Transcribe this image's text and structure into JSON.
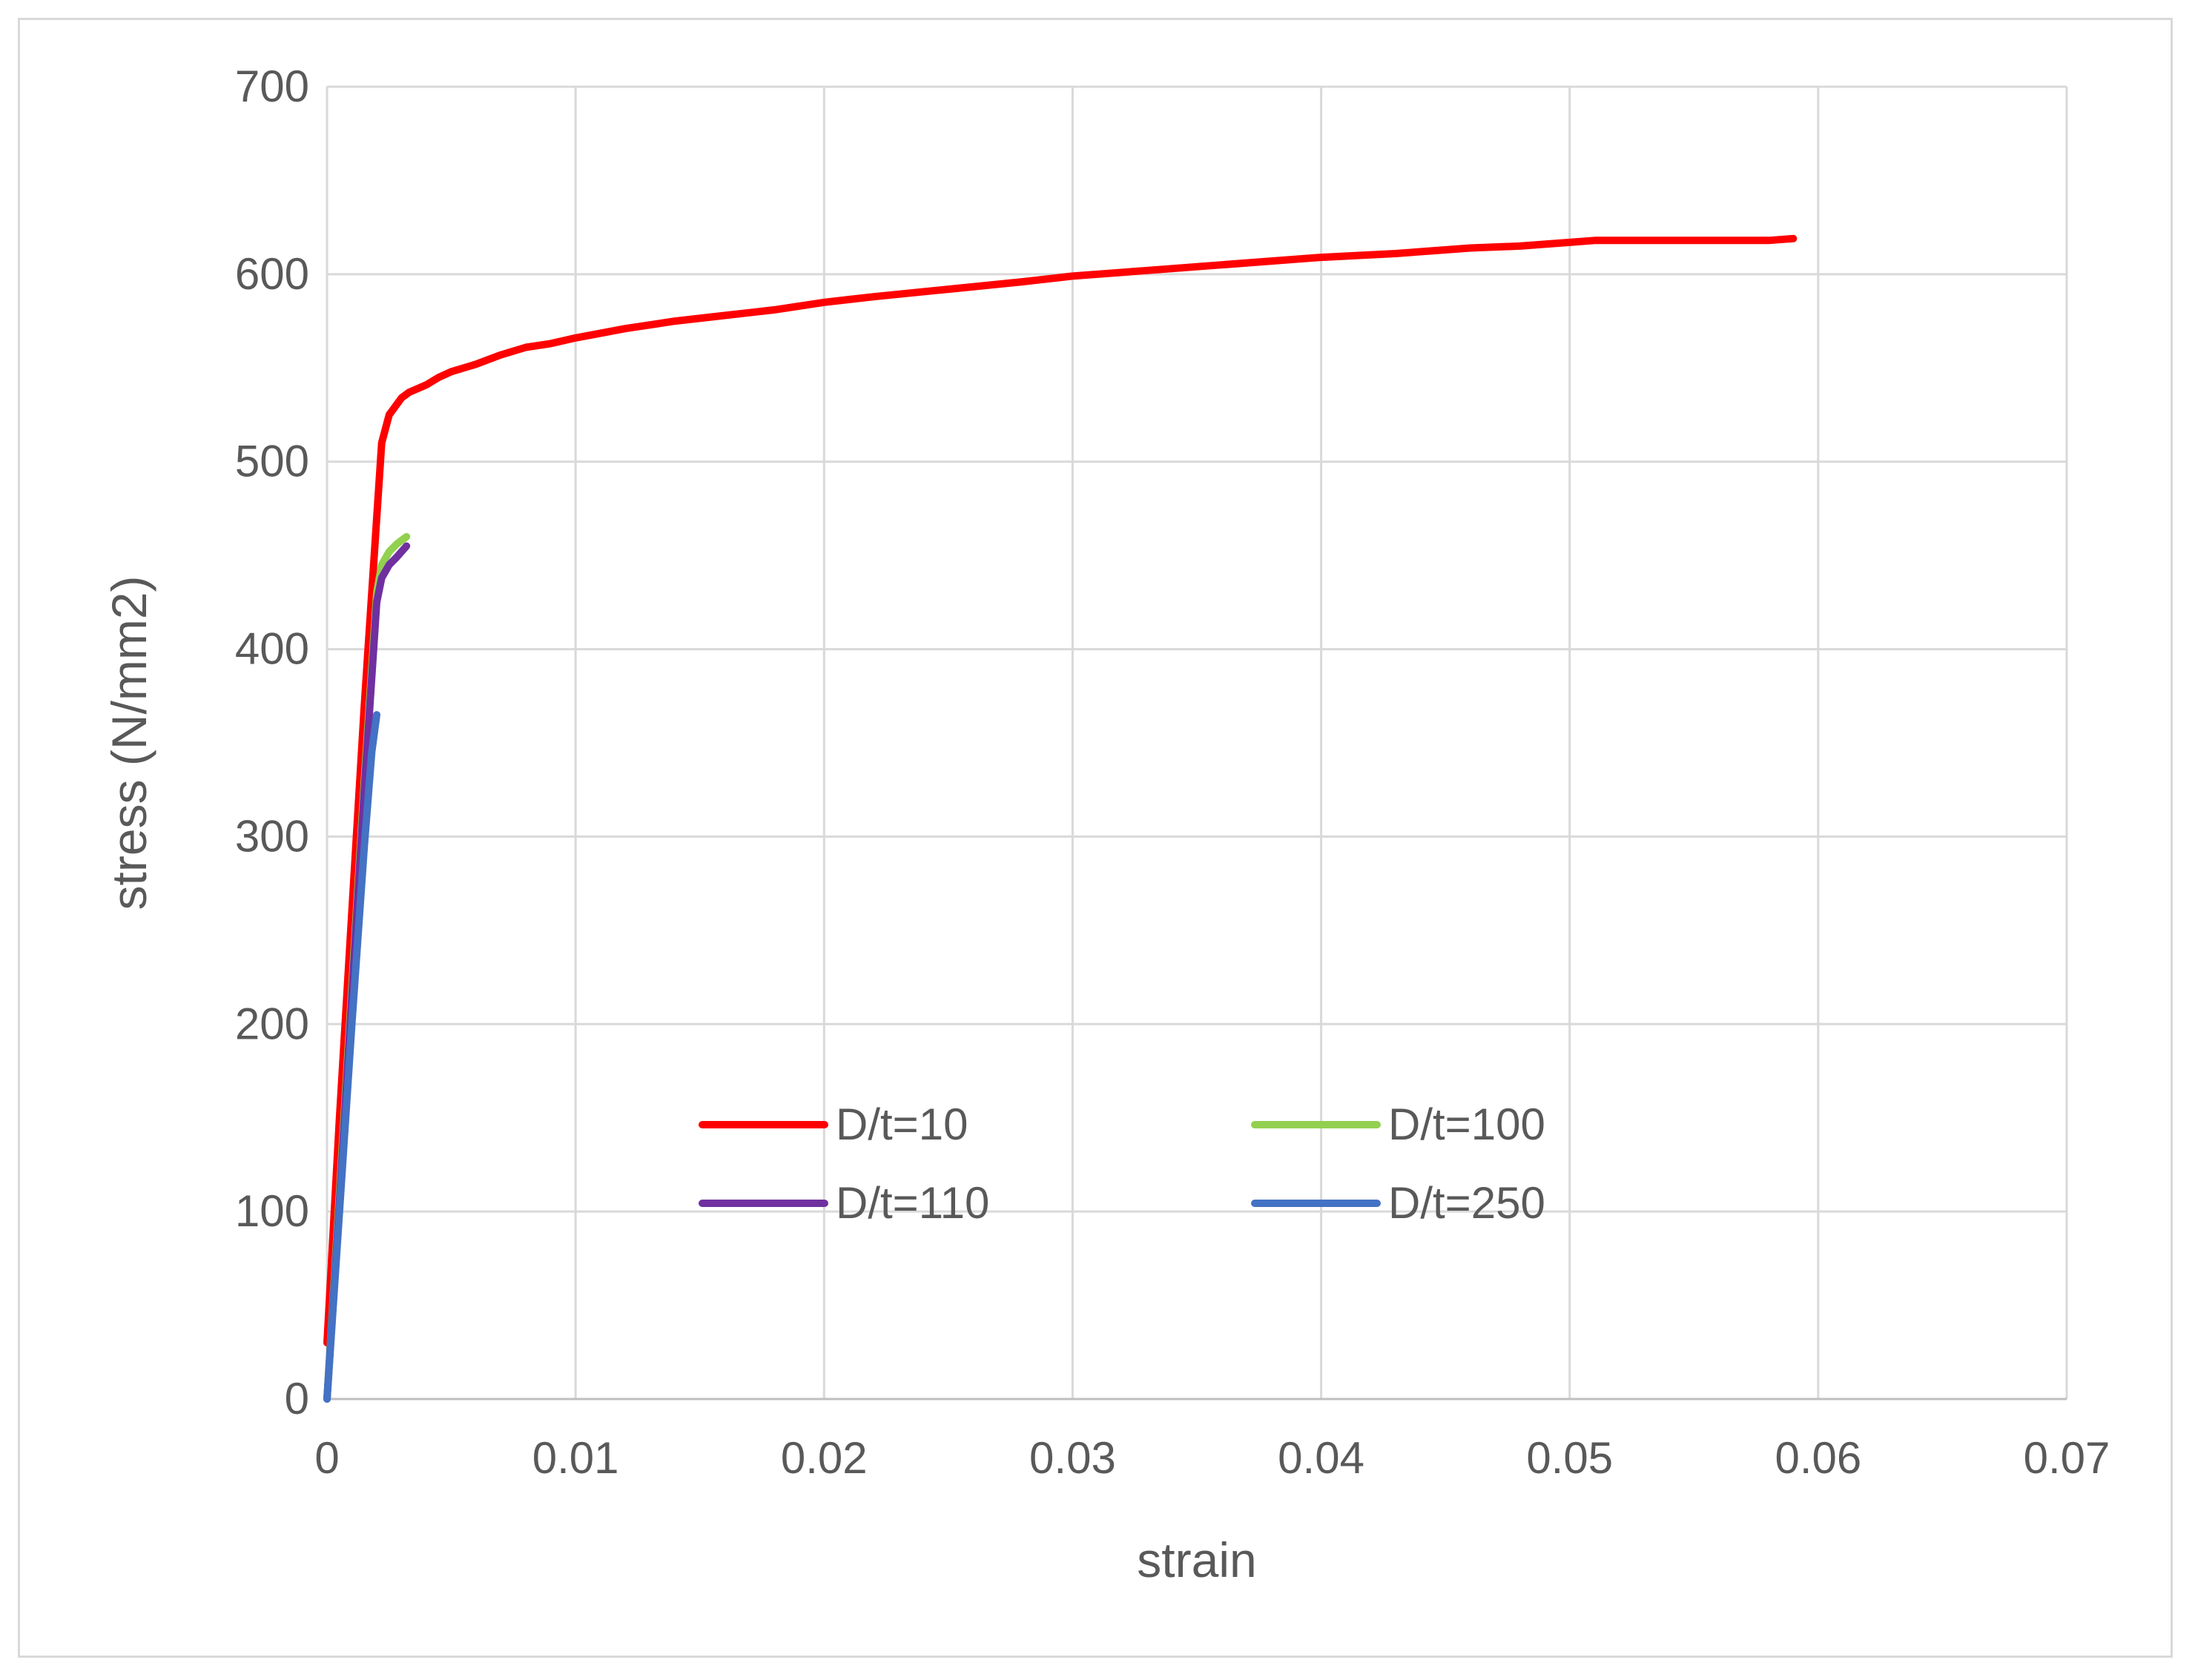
{
  "chart_data": {
    "type": "line",
    "title": "",
    "xlabel": "strain",
    "ylabel": "stress (N/mm2)",
    "xlim": [
      0,
      0.07
    ],
    "ylim": [
      0,
      700
    ],
    "xticks": [
      "0",
      "0.01",
      "0.02",
      "0.03",
      "0.04",
      "0.05",
      "0.06",
      "0.07"
    ],
    "yticks": [
      "0",
      "100",
      "200",
      "300",
      "400",
      "500",
      "600",
      "700"
    ],
    "grid": true,
    "legend_position": "center-bottom",
    "series": [
      {
        "name": "D/t=10",
        "color": "#ff0000",
        "x": [
          0,
          0.0005,
          0.001,
          0.0015,
          0.002,
          0.0022,
          0.0025,
          0.003,
          0.0033,
          0.004,
          0.0045,
          0.005,
          0.006,
          0.007,
          0.008,
          0.009,
          0.01,
          0.012,
          0.014,
          0.016,
          0.018,
          0.02,
          0.022,
          0.025,
          0.028,
          0.03,
          0.033,
          0.036,
          0.04,
          0.043,
          0.045,
          0.046,
          0.048,
          0.049,
          0.05,
          0.051,
          0.053,
          0.055,
          0.057,
          0.058,
          0.059
        ],
        "y": [
          30,
          150,
          260,
          370,
          470,
          510,
          525,
          534,
          537,
          541,
          545,
          548,
          552,
          557,
          561,
          563,
          566,
          571,
          575,
          578,
          581,
          585,
          588,
          592,
          596,
          599,
          602,
          605,
          609,
          611,
          613,
          614,
          615,
          616,
          617,
          618,
          618,
          618,
          618,
          618,
          619
        ]
      },
      {
        "name": "D/t=100",
        "color": "#92d050",
        "x": [
          0,
          0.0005,
          0.001,
          0.0015,
          0.002,
          0.0022,
          0.0025,
          0.0028,
          0.003,
          0.0032
        ],
        "y": [
          0,
          110,
          220,
          330,
          430,
          445,
          452,
          456,
          458,
          460
        ]
      },
      {
        "name": "D/t=110",
        "color": "#7030a0",
        "x": [
          0,
          0.0005,
          0.001,
          0.0015,
          0.002,
          0.0022,
          0.0025,
          0.0028,
          0.003,
          0.0032
        ],
        "y": [
          0,
          105,
          215,
          325,
          425,
          438,
          445,
          449,
          452,
          455
        ]
      },
      {
        "name": "D/t=250",
        "color": "#4472c4",
        "x": [
          0,
          0.0005,
          0.001,
          0.0015,
          0.0018,
          0.002
        ],
        "y": [
          0,
          100,
          200,
          295,
          345,
          365
        ]
      }
    ]
  }
}
